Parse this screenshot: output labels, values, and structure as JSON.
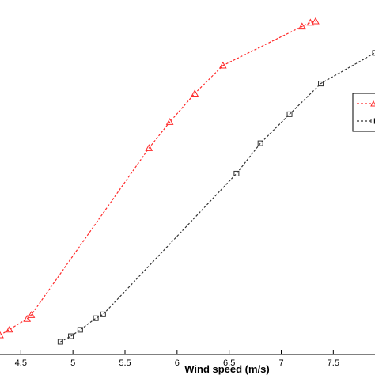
{
  "chart_data": {
    "type": "line",
    "title": "",
    "xlabel": "Wind speed (m/s)",
    "ylabel": "",
    "xlim": [
      4.3,
      7.9
    ],
    "ylim": [
      0,
      1
    ],
    "grid": false,
    "legend_position": "right",
    "x_ticks": [
      "4.5",
      "5",
      "5.5",
      "6",
      "6.5",
      "7",
      "7.5"
    ],
    "series": [
      {
        "name": "",
        "color": "#ff2a2a",
        "marker": "triangle",
        "line_style": "dashed",
        "x": [
          4.3,
          4.39,
          4.56,
          4.6,
          5.73,
          5.93,
          6.17,
          6.44,
          7.2,
          7.28,
          7.33
        ],
        "y": [
          0.02,
          0.038,
          0.071,
          0.083,
          0.6,
          0.681,
          0.769,
          0.856,
          0.977,
          0.989,
          0.993
        ]
      },
      {
        "name": "",
        "color": "#333333",
        "marker": "square",
        "line_style": "dashed",
        "x": [
          4.88,
          4.98,
          5.07,
          5.22,
          5.29,
          6.57,
          6.8,
          7.08,
          7.38,
          7.9
        ],
        "y": [
          0.0,
          0.017,
          0.037,
          0.073,
          0.085,
          0.521,
          0.615,
          0.705,
          0.8,
          0.895
        ]
      }
    ],
    "legend": [
      {
        "label": "",
        "color": "#ff2a2a",
        "marker": "triangle"
      },
      {
        "label": "E",
        "color": "#333333",
        "marker": "square"
      }
    ]
  }
}
